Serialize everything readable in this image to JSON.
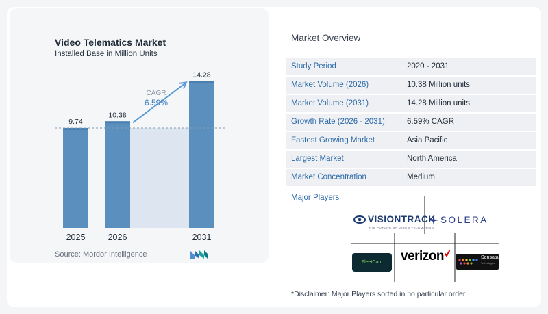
{
  "chart_data": {
    "type": "bar",
    "title": "Video Telematics Market",
    "subtitle": "Installed Base in Million Units",
    "categories": [
      "2025",
      "2026",
      "2031"
    ],
    "values": [
      9.74,
      10.38,
      14.28
    ],
    "value_labels": [
      "9.74",
      "10.38",
      "14.28"
    ],
    "cagr_label": "CAGR",
    "cagr_value": "6.59%",
    "ylim": [
      0,
      15.5
    ],
    "reference_value": 9.74,
    "bar_color": "#5b8fbd",
    "bar_top_color": "#4a7fb0",
    "shade_color": "#dde6f0",
    "arrow_color": "#5b9bd5"
  },
  "source": "Source:  Mordor Intelligence",
  "brand_icon": "mordor-intelligence-logo",
  "overview": {
    "title": "Market Overview",
    "rows": [
      {
        "label": "Study Period",
        "value": "2020 - 2031"
      },
      {
        "label": "Market Volume (2026)",
        "value": "10.38 Million units"
      },
      {
        "label": "Market Volume (2031)",
        "value": "14.28 Million units"
      },
      {
        "label": "Growth Rate (2026 - 2031)",
        "value": "6.59% CAGR"
      },
      {
        "label": "Fastest Growing Market",
        "value": "Asia Pacific"
      },
      {
        "label": "Largest Market",
        "value": "North America"
      },
      {
        "label": "Market Concentration",
        "value": "Medium"
      }
    ],
    "players_title": "Major Players",
    "players": {
      "visiontrack": "VISIONTRACK",
      "visiontrack_tag": "THE FUTURE OF VIDEO TELEMATICS",
      "solera": "SOLERA",
      "fleetcam": "FleetCam",
      "verizon": "verizon",
      "sensata": "Sensata",
      "sensata_sub": "Technologies"
    },
    "disclaimer": "*Disclaimer: Major Players sorted in no particular order"
  }
}
